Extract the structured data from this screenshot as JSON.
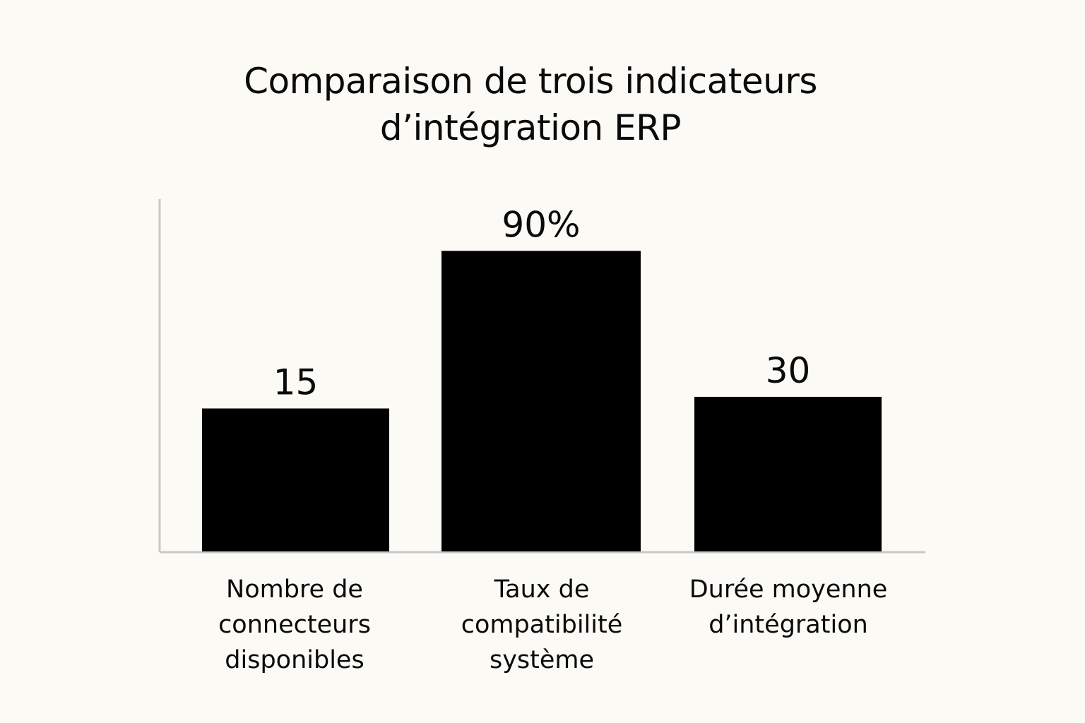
{
  "chart_data": {
    "type": "bar",
    "title": [
      "Comparaison de trois indicateurs",
      "d’intégration ERP"
    ],
    "categories": [
      [
        "Nombre de",
        "connecteurs",
        "disponibles"
      ],
      [
        "Taux de",
        "compatibilité",
        "système"
      ],
      [
        "Durée moyenne",
        "d’intégration"
      ]
    ],
    "values": [
      15,
      90,
      30
    ],
    "data_labels": [
      "15",
      "90%",
      "30"
    ],
    "xlabel": "",
    "ylabel": "",
    "grid": false,
    "legend": "none",
    "colors": {
      "bar": "#000000",
      "axis": "#c8c8c8",
      "background": "#fbfaf5"
    }
  }
}
